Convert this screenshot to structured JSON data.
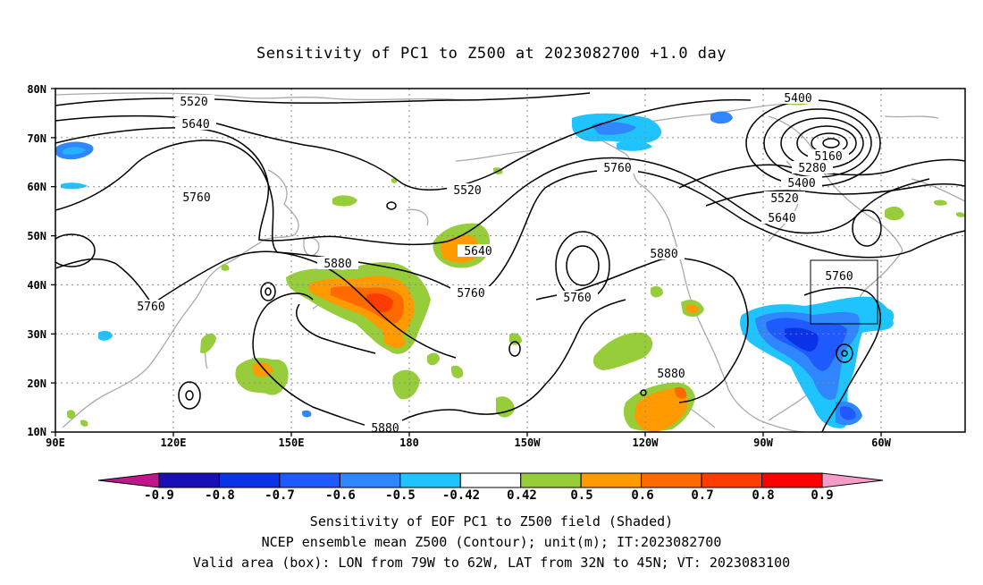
{
  "title": "Sensitivity of PC1 to Z500 at 2023082700 +1.0 day",
  "lat_ticks": [
    {
      "label": "80N",
      "lat": 80
    },
    {
      "label": "70N",
      "lat": 70
    },
    {
      "label": "60N",
      "lat": 60
    },
    {
      "label": "50N",
      "lat": 50
    },
    {
      "label": "40N",
      "lat": 40
    },
    {
      "label": "30N",
      "lat": 30
    },
    {
      "label": "20N",
      "lat": 20
    },
    {
      "label": "10N",
      "lat": 10
    }
  ],
  "lon_ticks": [
    {
      "label": "90E",
      "lon": 90
    },
    {
      "label": "120E",
      "lon": 120
    },
    {
      "label": "150E",
      "lon": 150
    },
    {
      "label": "180",
      "lon": 180
    },
    {
      "label": "150W",
      "lon": 210
    },
    {
      "label": "120W",
      "lon": 240
    },
    {
      "label": "90W",
      "lon": 270
    },
    {
      "label": "60W",
      "lon": 300
    }
  ],
  "contour_labels": [
    "5400",
    "5520",
    "5640",
    "5760",
    "5160",
    "5280",
    "5400",
    "5520",
    "5640",
    "5760",
    "5520",
    "5640",
    "5760",
    "5760",
    "5760",
    "5880",
    "5880",
    "5880",
    "5880",
    "5760"
  ],
  "colorbar": {
    "labels": [
      "-0.9",
      "-0.8",
      "-0.7",
      "-0.6",
      "-0.5",
      "-0.42",
      "0.42",
      "0.5",
      "0.6",
      "0.7",
      "0.8",
      "0.9"
    ],
    "colors": [
      "#1a0fb4",
      "#0a32e6",
      "#1f5aff",
      "#2f86ff",
      "#1fc4ff",
      "#ffffff",
      "#97cc3a",
      "#ff9a00",
      "#ff6a00",
      "#ff3c00",
      "#ff0000"
    ],
    "low_cap": "#c0188c",
    "high_cap": "#f59cc8"
  },
  "footer": {
    "line1": "Sensitivity of EOF PC1 to Z500 field (Shaded)",
    "line2": "NCEP ensemble mean Z500 (Contour); unit(m); IT:2023082700",
    "line3": "Valid area (box): LON from 79W to 62W, LAT from 32N to 45N; VT: 2023083100"
  }
}
